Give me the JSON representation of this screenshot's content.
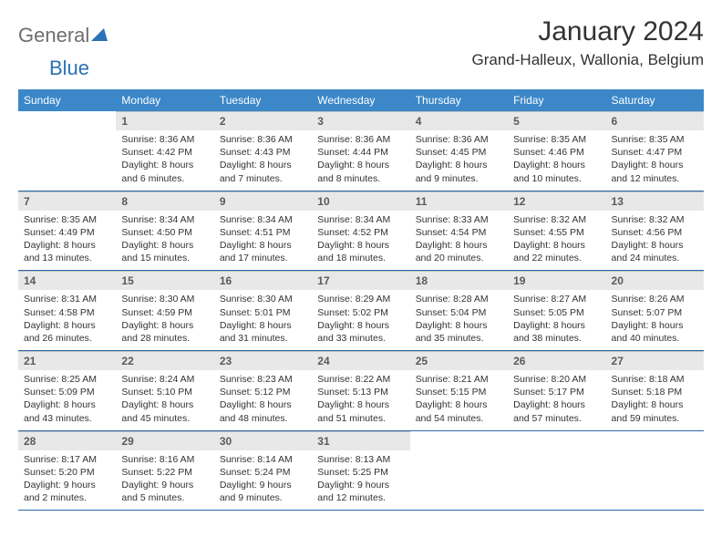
{
  "logo": {
    "part1": "General",
    "part2": "Blue"
  },
  "title": "January 2024",
  "location": "Grand-Halleux, Wallonia, Belgium",
  "colors": {
    "header_bg": "#3b87c8",
    "header_text": "#ffffff",
    "daynum_bg": "#e8e8e8",
    "daynum_text": "#5a5a5a",
    "rule": "#2a6aa6",
    "logo_gray": "#6e6e6e",
    "logo_blue": "#2b72b8",
    "text": "#333333"
  },
  "dow": [
    "Sunday",
    "Monday",
    "Tuesday",
    "Wednesday",
    "Thursday",
    "Friday",
    "Saturday"
  ],
  "weeks": [
    [
      null,
      {
        "n": "1",
        "sr": "8:36 AM",
        "ss": "4:42 PM",
        "dl": "8 hours and 6 minutes."
      },
      {
        "n": "2",
        "sr": "8:36 AM",
        "ss": "4:43 PM",
        "dl": "8 hours and 7 minutes."
      },
      {
        "n": "3",
        "sr": "8:36 AM",
        "ss": "4:44 PM",
        "dl": "8 hours and 8 minutes."
      },
      {
        "n": "4",
        "sr": "8:36 AM",
        "ss": "4:45 PM",
        "dl": "8 hours and 9 minutes."
      },
      {
        "n": "5",
        "sr": "8:35 AM",
        "ss": "4:46 PM",
        "dl": "8 hours and 10 minutes."
      },
      {
        "n": "6",
        "sr": "8:35 AM",
        "ss": "4:47 PM",
        "dl": "8 hours and 12 minutes."
      }
    ],
    [
      {
        "n": "7",
        "sr": "8:35 AM",
        "ss": "4:49 PM",
        "dl": "8 hours and 13 minutes."
      },
      {
        "n": "8",
        "sr": "8:34 AM",
        "ss": "4:50 PM",
        "dl": "8 hours and 15 minutes."
      },
      {
        "n": "9",
        "sr": "8:34 AM",
        "ss": "4:51 PM",
        "dl": "8 hours and 17 minutes."
      },
      {
        "n": "10",
        "sr": "8:34 AM",
        "ss": "4:52 PM",
        "dl": "8 hours and 18 minutes."
      },
      {
        "n": "11",
        "sr": "8:33 AM",
        "ss": "4:54 PM",
        "dl": "8 hours and 20 minutes."
      },
      {
        "n": "12",
        "sr": "8:32 AM",
        "ss": "4:55 PM",
        "dl": "8 hours and 22 minutes."
      },
      {
        "n": "13",
        "sr": "8:32 AM",
        "ss": "4:56 PM",
        "dl": "8 hours and 24 minutes."
      }
    ],
    [
      {
        "n": "14",
        "sr": "8:31 AM",
        "ss": "4:58 PM",
        "dl": "8 hours and 26 minutes."
      },
      {
        "n": "15",
        "sr": "8:30 AM",
        "ss": "4:59 PM",
        "dl": "8 hours and 28 minutes."
      },
      {
        "n": "16",
        "sr": "8:30 AM",
        "ss": "5:01 PM",
        "dl": "8 hours and 31 minutes."
      },
      {
        "n": "17",
        "sr": "8:29 AM",
        "ss": "5:02 PM",
        "dl": "8 hours and 33 minutes."
      },
      {
        "n": "18",
        "sr": "8:28 AM",
        "ss": "5:04 PM",
        "dl": "8 hours and 35 minutes."
      },
      {
        "n": "19",
        "sr": "8:27 AM",
        "ss": "5:05 PM",
        "dl": "8 hours and 38 minutes."
      },
      {
        "n": "20",
        "sr": "8:26 AM",
        "ss": "5:07 PM",
        "dl": "8 hours and 40 minutes."
      }
    ],
    [
      {
        "n": "21",
        "sr": "8:25 AM",
        "ss": "5:09 PM",
        "dl": "8 hours and 43 minutes."
      },
      {
        "n": "22",
        "sr": "8:24 AM",
        "ss": "5:10 PM",
        "dl": "8 hours and 45 minutes."
      },
      {
        "n": "23",
        "sr": "8:23 AM",
        "ss": "5:12 PM",
        "dl": "8 hours and 48 minutes."
      },
      {
        "n": "24",
        "sr": "8:22 AM",
        "ss": "5:13 PM",
        "dl": "8 hours and 51 minutes."
      },
      {
        "n": "25",
        "sr": "8:21 AM",
        "ss": "5:15 PM",
        "dl": "8 hours and 54 minutes."
      },
      {
        "n": "26",
        "sr": "8:20 AM",
        "ss": "5:17 PM",
        "dl": "8 hours and 57 minutes."
      },
      {
        "n": "27",
        "sr": "8:18 AM",
        "ss": "5:18 PM",
        "dl": "8 hours and 59 minutes."
      }
    ],
    [
      {
        "n": "28",
        "sr": "8:17 AM",
        "ss": "5:20 PM",
        "dl": "9 hours and 2 minutes."
      },
      {
        "n": "29",
        "sr": "8:16 AM",
        "ss": "5:22 PM",
        "dl": "9 hours and 5 minutes."
      },
      {
        "n": "30",
        "sr": "8:14 AM",
        "ss": "5:24 PM",
        "dl": "9 hours and 9 minutes."
      },
      {
        "n": "31",
        "sr": "8:13 AM",
        "ss": "5:25 PM",
        "dl": "9 hours and 12 minutes."
      },
      null,
      null,
      null
    ]
  ],
  "labels": {
    "sunrise": "Sunrise: ",
    "sunset": "Sunset: ",
    "daylight": "Daylight: "
  }
}
